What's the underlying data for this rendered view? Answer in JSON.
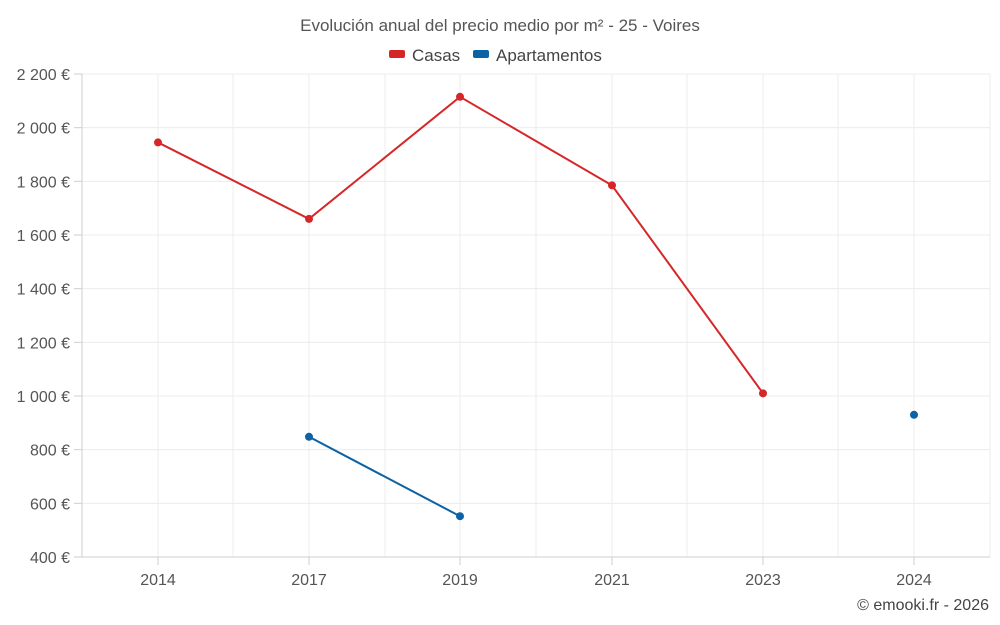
{
  "chart_data": {
    "type": "line",
    "title": "Evolución anual del precio medio por m² - 25 - Voires",
    "categories": [
      "2014",
      "2017",
      "2019",
      "2021",
      "2023",
      "2024"
    ],
    "series": [
      {
        "name": "Casas",
        "color": "#d62728",
        "values": [
          1945,
          1660,
          2115,
          1785,
          1010,
          null
        ]
      },
      {
        "name": "Apartamentos",
        "color": "#0b62a4",
        "values": [
          null,
          848,
          552,
          null,
          null,
          930
        ]
      }
    ],
    "ylim": [
      400,
      2200
    ],
    "yticks": [
      400,
      600,
      800,
      1000,
      1200,
      1400,
      1600,
      1800,
      2000,
      2200
    ],
    "ytick_labels": [
      "400 €",
      "600 €",
      "800 €",
      "1 000 €",
      "1 200 €",
      "1 400 €",
      "1 600 €",
      "1 800 €",
      "2 000 €",
      "2 200 €"
    ],
    "xlabel": "",
    "ylabel": "",
    "grid": true,
    "legend_position": "top-center"
  },
  "credit": "© emooki.fr - 2026"
}
